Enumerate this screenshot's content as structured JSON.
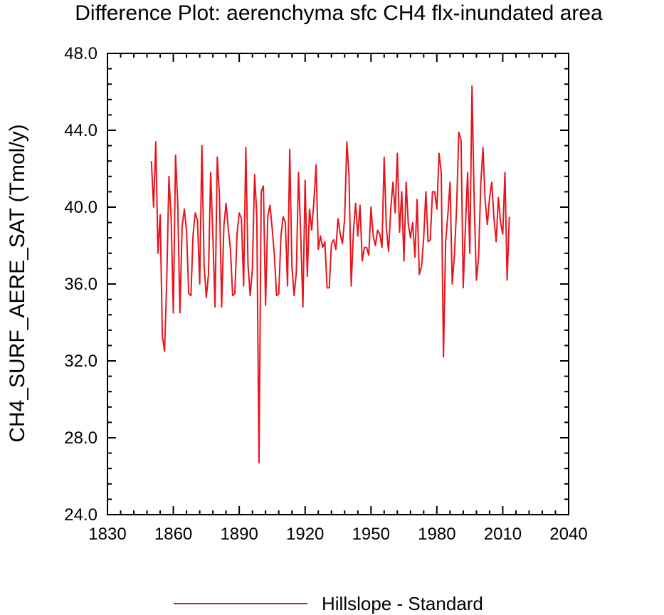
{
  "chart_data": {
    "type": "line",
    "title": "Difference Plot: aerenchyma sfc CH4 flx-inundated area",
    "xlabel": "",
    "ylabel": "CH4_SURF_AERE_SAT  (Tmol/y)",
    "xlim": [
      1830,
      2040
    ],
    "ylim": [
      24.0,
      48.0
    ],
    "x_ticks": [
      "1830",
      "1860",
      "1890",
      "1920",
      "1950",
      "1980",
      "2010",
      "2040"
    ],
    "y_ticks": [
      "24.0",
      "28.0",
      "32.0",
      "36.0",
      "40.0",
      "44.0",
      "48.0"
    ],
    "legend_position": "bottom",
    "series": [
      {
        "name": "Hillslope - Standard",
        "color": "#e8141c",
        "x_start": 1850,
        "x_step": 1,
        "values": [
          42.4,
          40.0,
          43.4,
          37.6,
          39.6,
          33.3,
          32.5,
          36.2,
          41.6,
          39.4,
          34.5,
          42.7,
          40.2,
          34.5,
          39.0,
          39.9,
          38.8,
          35.5,
          35.4,
          38.6,
          39.7,
          39.3,
          36.0,
          43.2,
          37.0,
          35.3,
          36.5,
          41.8,
          38.5,
          34.8,
          42.6,
          40.6,
          34.8,
          39.0,
          40.2,
          38.9,
          37.8,
          35.4,
          35.5,
          38.6,
          39.7,
          39.4,
          35.9,
          43.1,
          37.0,
          35.4,
          36.8,
          41.7,
          39.6,
          26.7,
          40.8,
          41.1,
          34.9,
          39.5,
          40.1,
          38.9,
          37.5,
          35.4,
          35.5,
          38.5,
          39.5,
          39.2,
          35.9,
          43.0,
          36.9,
          35.4,
          36.6,
          41.8,
          38.6,
          34.8,
          41.4,
          36.4,
          39.9,
          38.8,
          40.3,
          42.2,
          37.8,
          38.5,
          37.9,
          38.2,
          35.8,
          35.8,
          38.1,
          38.3,
          37.8,
          39.4,
          38.6,
          38.1,
          39.4,
          43.4,
          41.6,
          35.9,
          38.7,
          40.2,
          38.5,
          40.1,
          37.2,
          37.9,
          37.9,
          37.5,
          40.0,
          38.5,
          38.0,
          38.8,
          38.6,
          37.9,
          42.6,
          38.9,
          37.7,
          39.9,
          41.3,
          39.7,
          42.8,
          38.7,
          40.8,
          37.2,
          41.3,
          39.1,
          38.4,
          39.2,
          37.4,
          40.4,
          36.5,
          36.9,
          38.4,
          40.8,
          38.2,
          38.3,
          40.8,
          40.8,
          39.9,
          42.8,
          41.8,
          32.2,
          38.2,
          39.6,
          41.3,
          36.0,
          37.5,
          40.0,
          43.9,
          43.5,
          35.8,
          39.0,
          41.8,
          37.6,
          46.3,
          40.2,
          36.2,
          37.4,
          41.2,
          43.1,
          40.3,
          39.1,
          40.5,
          41.3,
          39.4,
          38.2,
          40.5,
          39.2,
          38.6,
          41.8,
          36.2,
          39.5
        ]
      }
    ]
  }
}
